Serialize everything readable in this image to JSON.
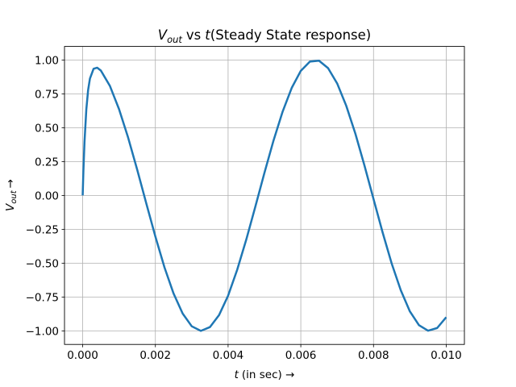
{
  "chart_data": {
    "type": "line",
    "title": [
      "V",
      "out",
      "vs",
      "t",
      "(Steady State response)"
    ],
    "x_label": [
      "t",
      "(in sec) →"
    ],
    "y_label": [
      "V",
      "out",
      "→"
    ],
    "x": [
      0,
      2e-05,
      5e-05,
      0.0001,
      0.00015,
      0.0002,
      0.0003,
      0.0004,
      0.0005,
      0.00075,
      0.001,
      0.00125,
      0.0015,
      0.00175,
      0.002,
      0.00225,
      0.0025,
      0.00275,
      0.003,
      0.00325,
      0.0035,
      0.00375,
      0.004,
      0.00425,
      0.0045,
      0.00475,
      0.005,
      0.00525,
      0.0055,
      0.00575,
      0.006,
      0.00625,
      0.0065,
      0.00675,
      0.007,
      0.00725,
      0.0075,
      0.00775,
      0.008,
      0.00825,
      0.0085,
      0.00875,
      0.009,
      0.00925,
      0.0095,
      0.00975,
      0.01
    ],
    "values": [
      0,
      0.182,
      0.395,
      0.634,
      0.779,
      0.863,
      0.935,
      0.943,
      0.922,
      0.808,
      0.637,
      0.427,
      0.19,
      -0.059,
      -0.304,
      -0.531,
      -0.724,
      -0.872,
      -0.966,
      -1.0,
      -0.972,
      -0.884,
      -0.74,
      -0.549,
      -0.326,
      -0.082,
      0.167,
      0.406,
      0.619,
      0.794,
      0.92,
      0.988,
      0.995,
      0.94,
      0.827,
      0.662,
      0.457,
      0.222,
      -0.026,
      -0.273,
      -0.503,
      -0.7,
      -0.856,
      -0.958,
      -0.999,
      -0.979,
      -0.899
    ],
    "color": "#1f77b4",
    "xlim": [
      -0.0005,
      0.0105
    ],
    "ylim": [
      -1.1,
      1.1
    ],
    "xticks": [
      {
        "value": 0,
        "label": "0.000"
      },
      {
        "value": 0.002,
        "label": "0.002"
      },
      {
        "value": 0.004,
        "label": "0.004"
      },
      {
        "value": 0.006,
        "label": "0.006"
      },
      {
        "value": 0.008,
        "label": "0.008"
      },
      {
        "value": 0.01,
        "label": "0.010"
      }
    ],
    "yticks": [
      {
        "value": -1,
        "label": "−1.00"
      },
      {
        "value": -0.75,
        "label": "−0.75"
      },
      {
        "value": -0.5,
        "label": "−0.50"
      },
      {
        "value": -0.25,
        "label": "−0.25"
      },
      {
        "value": 0,
        "label": "0.00"
      },
      {
        "value": 0.25,
        "label": "0.25"
      },
      {
        "value": 0.5,
        "label": "0.50"
      },
      {
        "value": 0.75,
        "label": "0.75"
      },
      {
        "value": 1,
        "label": "1.00"
      }
    ],
    "grid": true
  }
}
